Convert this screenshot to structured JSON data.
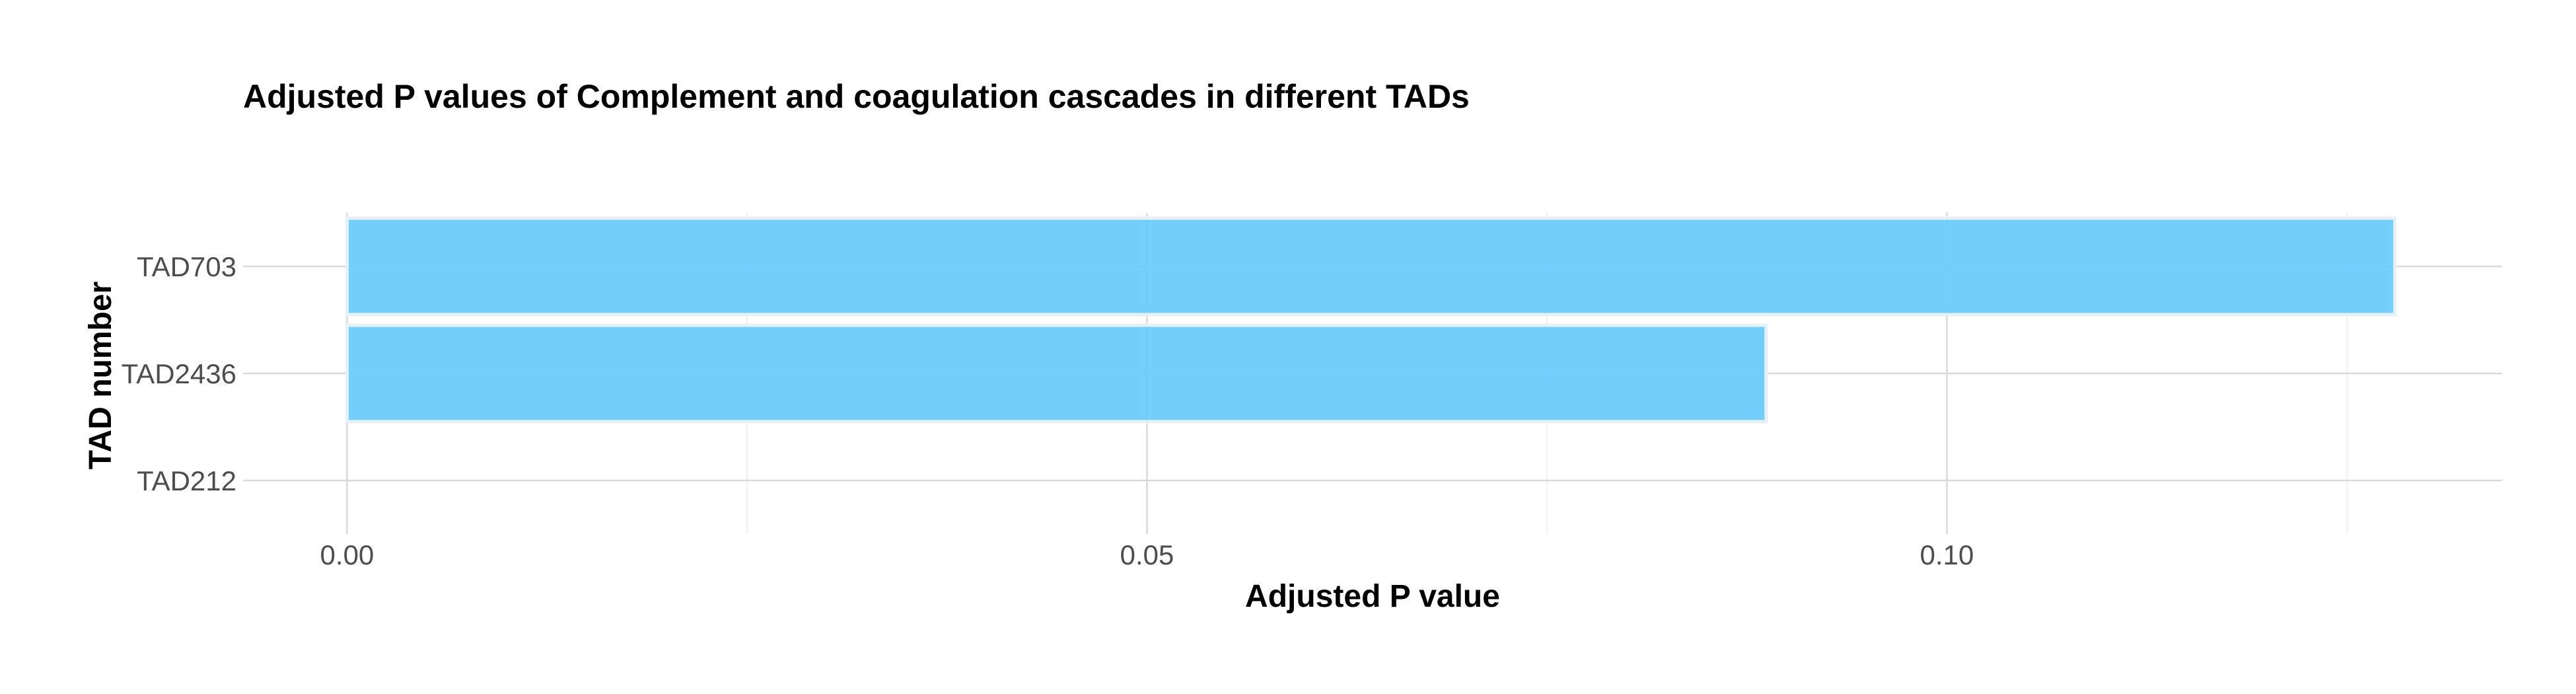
{
  "chart_data": {
    "type": "bar",
    "orientation": "horizontal",
    "title": "Adjusted P values of Complement and coagulation cascades in different TADs",
    "xlabel": "Adjusted P value",
    "ylabel": "TAD number",
    "categories": [
      "TAD212",
      "TAD2436",
      "TAD703"
    ],
    "values": [
      0.0,
      0.0887,
      0.128
    ],
    "xlim": [
      -0.0065,
      0.1347
    ],
    "x_ticks": [
      0.0,
      0.05,
      0.1
    ],
    "x_tick_labels": [
      "0.00",
      "0.05",
      "0.10"
    ],
    "x_minor_ticks": [
      0.025,
      0.075,
      0.125
    ],
    "grid": true,
    "legend": "none",
    "colors": {
      "bar_fill": "#6ccbfa",
      "bar_outline": "#ffffff",
      "grid_major": "#d9d9d9",
      "grid_minor": "#ececec",
      "tick_text": "#4d4d4d",
      "title_text": "#000000"
    }
  }
}
